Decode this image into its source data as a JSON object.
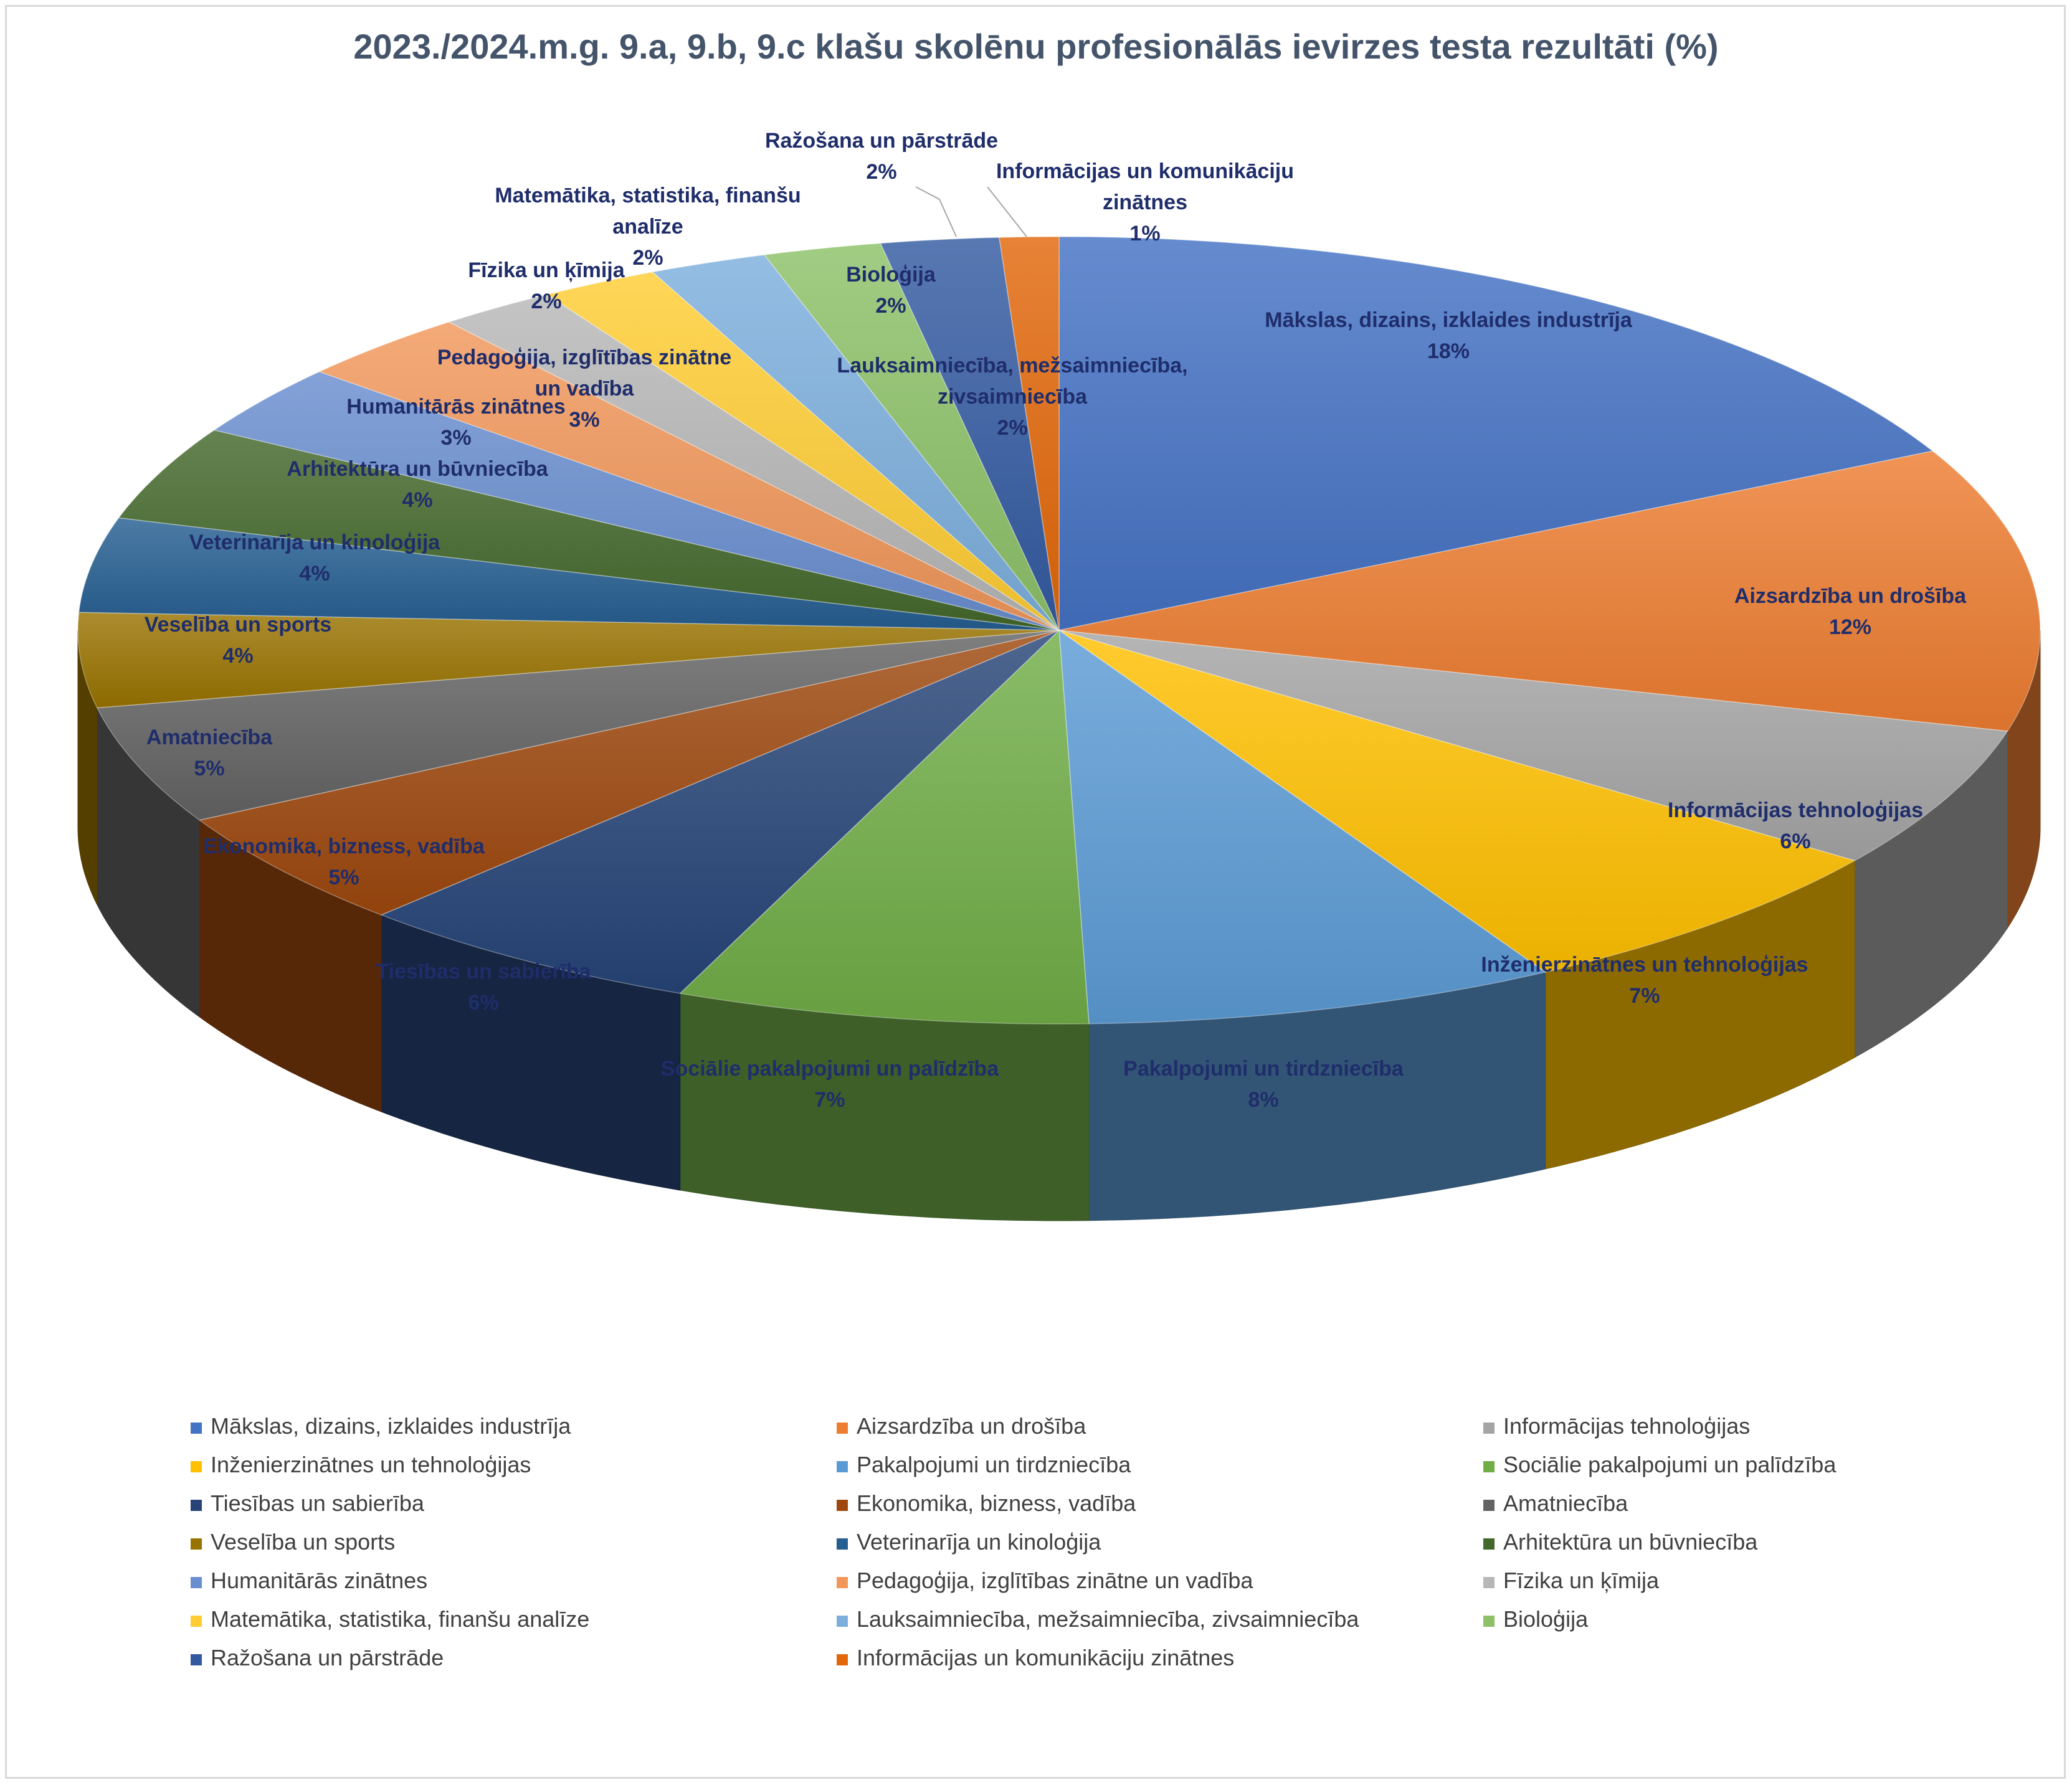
{
  "chart_data": {
    "type": "pie",
    "title": "2023./2024.m.g. 9.a, 9.b, 9.c klašu skolēnu profesionālās ievirzes testa rezultāti (%)",
    "unit": "%",
    "slices": [
      {
        "label": "Mākslas, dizains, izklaides industrīja",
        "value": 18,
        "display": "18%",
        "color": "#4472c4"
      },
      {
        "label": "Aizsardzība un drošība",
        "value": 12,
        "display": "12%",
        "color": "#ed7d31"
      },
      {
        "label": "Informācijas tehnoloģijas",
        "value": 6,
        "display": "6%",
        "color": "#a5a5a5"
      },
      {
        "label": "Inženierzinātnes un tehnoloģijas",
        "value": 7,
        "display": "7%",
        "color": "#ffc000"
      },
      {
        "label": "Pakalpojumi un tirdzniecība",
        "value": 8,
        "display": "8%",
        "color": "#5b9bd5"
      },
      {
        "label": "Sociālie pakalpojumi un palīdzība",
        "value": 7,
        "display": "7%",
        "color": "#70ad47"
      },
      {
        "label": "Tiesības un sabierība",
        "value": 6,
        "display": "6%",
        "color": "#264478"
      },
      {
        "label": "Ekonomika, bizness, vadība",
        "value": 5,
        "display": "5%",
        "color": "#9e480e"
      },
      {
        "label": "Amatniecība",
        "value": 5,
        "display": "5%",
        "color": "#636363"
      },
      {
        "label": "Veselība un sports",
        "value": 4,
        "display": "4%",
        "color": "#997300"
      },
      {
        "label": "Veterinarīja un kinoloģija",
        "value": 4,
        "display": "4%",
        "color": "#255e91"
      },
      {
        "label": "Arhitektūra un būvniecība",
        "value": 4,
        "display": "4%",
        "color": "#43682b"
      },
      {
        "label": "Humanitārās zinātnes",
        "value": 3,
        "display": "3%",
        "color": "#698ed0"
      },
      {
        "label": "Pedagoģija, izglītības zinātne un vadība",
        "value": 3,
        "display": "3%",
        "color": "#f1975a"
      },
      {
        "label": "Fīzika un ķīmija",
        "value": 2,
        "display": "2%",
        "color": "#b7b7b7"
      },
      {
        "label": "Matemātika, statistika, finanšu analīze",
        "value": 2,
        "display": "2%",
        "color": "#ffcd33"
      },
      {
        "label": "Lauksaimniecība, mežsaimniecība, zivsaimniecība",
        "value": 2,
        "display": "2%",
        "color": "#7cafdd"
      },
      {
        "label": "Bioloģija",
        "value": 2,
        "display": "2%",
        "color": "#8cc168"
      },
      {
        "label": "Ražošana un pārstrāde",
        "value": 2,
        "display": "2%",
        "color": "#335aa1"
      },
      {
        "label": "Informācijas un komunikāciju zinātnes",
        "value": 1,
        "display": "1%",
        "color": "#e2670a"
      }
    ],
    "legend": "bottom",
    "style": "3d-pie"
  }
}
